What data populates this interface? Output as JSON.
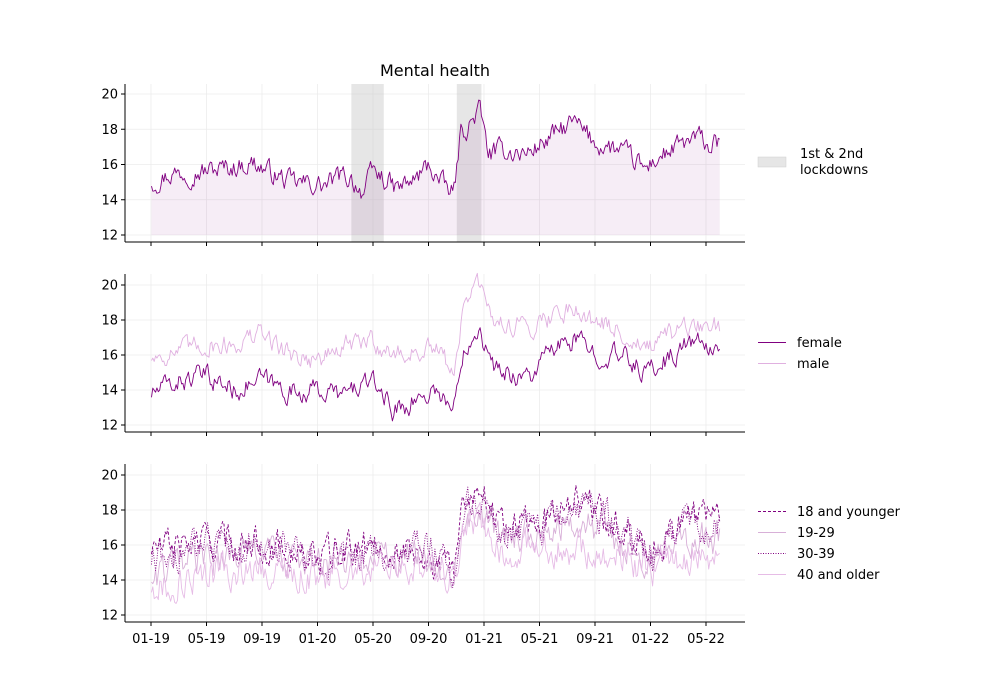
{
  "chart_data": {
    "type": "line",
    "title": "Mental health",
    "x_ticks": [
      "01-19",
      "05-19",
      "09-19",
      "01-20",
      "05-20",
      "09-20",
      "01-21",
      "05-21",
      "09-21",
      "01-22",
      "05-22"
    ],
    "x_range": [
      "2019-01-01",
      "2022-05-01"
    ],
    "colors": {
      "primary": "#800080",
      "light": "#e0b0e0",
      "shade": "#c8c8c8"
    },
    "panels": [
      {
        "ylim": [
          12,
          20
        ],
        "yticks": [
          12,
          14,
          16,
          18,
          20
        ],
        "grid": true,
        "legend_placement": "right",
        "lockdowns_label": "1st & 2nd\nlockdowns",
        "lockdown_periods": [
          {
            "start": "2020-03-15",
            "end": "2020-05-25"
          },
          {
            "start": "2020-11-01",
            "end": "2020-12-25"
          }
        ],
        "series": [
          {
            "style": "solid",
            "color": "#800080",
            "fill_to": 12,
            "anchors": [
              [
                "2019-01-02",
                15.0
              ],
              [
                "2019-02-15",
                15.5
              ],
              [
                "2019-04-15",
                15.6
              ],
              [
                "2019-06-15",
                15.8
              ],
              [
                "2019-08-15",
                16.1
              ],
              [
                "2019-09-15",
                15.6
              ],
              [
                "2019-11-01",
                15.0
              ],
              [
                "2019-12-15",
                14.9
              ],
              [
                "2020-01-15",
                14.8
              ],
              [
                "2020-02-20",
                15.3
              ],
              [
                "2020-03-15",
                15.2
              ],
              [
                "2020-04-10",
                14.4
              ],
              [
                "2020-05-01",
                15.6
              ],
              [
                "2020-05-25",
                15.2
              ],
              [
                "2020-06-20",
                14.6
              ],
              [
                "2020-08-01",
                15.1
              ],
              [
                "2020-09-01",
                16.0
              ],
              [
                "2020-09-25",
                15.0
              ],
              [
                "2020-10-25",
                14.3
              ],
              [
                "2020-11-10",
                17.8
              ],
              [
                "2020-12-01",
                18.3
              ],
              [
                "2020-12-20",
                19.2
              ],
              [
                "2021-01-10",
                16.6
              ],
              [
                "2021-02-15",
                16.8
              ],
              [
                "2021-04-01",
                16.6
              ],
              [
                "2021-05-01",
                17.1
              ],
              [
                "2021-06-15",
                17.9
              ],
              [
                "2021-07-15",
                18.4
              ],
              [
                "2021-09-01",
                17.2
              ],
              [
                "2021-11-01",
                16.7
              ],
              [
                "2021-12-20",
                15.7
              ],
              [
                "2022-01-10",
                16.3
              ],
              [
                "2022-03-01",
                17.0
              ],
              [
                "2022-04-15",
                17.5
              ],
              [
                "2022-05-10",
                17.0
              ],
              [
                "2022-06-01",
                17.2
              ]
            ]
          }
        ]
      },
      {
        "ylim": [
          12,
          20
        ],
        "yticks": [
          12,
          14,
          16,
          18,
          20
        ],
        "grid": true,
        "legend_placement": "right",
        "series": [
          {
            "name": "female",
            "style": "solid",
            "color": "#800080",
            "anchors": [
              [
                "2019-01-02",
                13.8
              ],
              [
                "2019-03-01",
                14.5
              ],
              [
                "2019-05-01",
                14.8
              ],
              [
                "2019-07-01",
                14.0
              ],
              [
                "2019-09-01",
                14.6
              ],
              [
                "2019-11-01",
                13.9
              ],
              [
                "2020-01-01",
                14.0
              ],
              [
                "2020-03-01",
                13.7
              ],
              [
                "2020-04-15",
                14.5
              ],
              [
                "2020-05-20",
                14.0
              ],
              [
                "2020-06-15",
                12.8
              ],
              [
                "2020-08-15",
                13.6
              ],
              [
                "2020-09-15",
                14.1
              ],
              [
                "2020-10-25",
                12.8
              ],
              [
                "2020-11-15",
                16.4
              ],
              [
                "2020-12-20",
                17.8
              ],
              [
                "2021-01-15",
                15.3
              ],
              [
                "2021-03-01",
                14.9
              ],
              [
                "2021-04-15",
                14.8
              ],
              [
                "2021-05-15",
                16.0
              ],
              [
                "2021-07-15",
                16.9
              ],
              [
                "2021-09-01",
                16.1
              ],
              [
                "2021-11-01",
                15.9
              ],
              [
                "2021-12-20",
                15.0
              ],
              [
                "2022-02-01",
                15.7
              ],
              [
                "2022-04-01",
                16.8
              ],
              [
                "2022-05-15",
                16.2
              ],
              [
                "2022-06-01",
                16.8
              ]
            ]
          },
          {
            "name": "male",
            "style": "solid",
            "color": "#e0b0e0",
            "anchors": [
              [
                "2019-01-02",
                15.9
              ],
              [
                "2019-03-01",
                16.2
              ],
              [
                "2019-05-01",
                16.6
              ],
              [
                "2019-07-01",
                16.6
              ],
              [
                "2019-09-01",
                17.2
              ],
              [
                "2019-11-01",
                16.1
              ],
              [
                "2020-01-01",
                15.7
              ],
              [
                "2020-03-01",
                16.5
              ],
              [
                "2020-05-01",
                16.8
              ],
              [
                "2020-06-15",
                16.0
              ],
              [
                "2020-09-15",
                16.3
              ],
              [
                "2020-10-25",
                15.1
              ],
              [
                "2020-11-20",
                19.2
              ],
              [
                "2020-12-20",
                20.0
              ],
              [
                "2021-01-15",
                18.0
              ],
              [
                "2021-04-01",
                17.6
              ],
              [
                "2021-07-15",
                18.8
              ],
              [
                "2021-09-01",
                17.9
              ],
              [
                "2021-11-15",
                17.1
              ],
              [
                "2021-12-20",
                16.2
              ],
              [
                "2022-03-01",
                17.3
              ],
              [
                "2022-05-15",
                17.8
              ],
              [
                "2022-06-01",
                17.5
              ]
            ]
          }
        ]
      },
      {
        "ylim": [
          12,
          20
        ],
        "yticks": [
          12,
          14,
          16,
          18,
          20
        ],
        "grid": true,
        "legend_placement": "right",
        "series": [
          {
            "name": "18 and younger",
            "style": "dashed",
            "color": "#800080",
            "anchors": [
              [
                "2019-01-02",
                15.8
              ],
              [
                "2019-05-01",
                16.2
              ],
              [
                "2019-09-01",
                16.1
              ],
              [
                "2020-01-01",
                15.2
              ],
              [
                "2020-05-01",
                16.0
              ],
              [
                "2020-09-01",
                15.4
              ],
              [
                "2020-10-25",
                14.2
              ],
              [
                "2020-11-15",
                18.6
              ],
              [
                "2020-12-20",
                19.5
              ],
              [
                "2021-02-01",
                17.4
              ],
              [
                "2021-05-01",
                17.1
              ],
              [
                "2021-07-15",
                19.0
              ],
              [
                "2021-10-01",
                17.3
              ],
              [
                "2022-01-01",
                15.9
              ],
              [
                "2022-04-01",
                17.8
              ],
              [
                "2022-06-01",
                18.2
              ]
            ]
          },
          {
            "name": "19-29",
            "style": "solid",
            "color": "#d8b0d8",
            "anchors": [
              [
                "2019-01-02",
                14.2
              ],
              [
                "2019-05-01",
                15.2
              ],
              [
                "2019-09-01",
                15.6
              ],
              [
                "2020-01-01",
                14.8
              ],
              [
                "2020-05-01",
                15.1
              ],
              [
                "2020-09-01",
                15.3
              ],
              [
                "2020-10-25",
                14.3
              ],
              [
                "2020-11-15",
                17.3
              ],
              [
                "2020-12-20",
                17.9
              ],
              [
                "2021-02-01",
                16.4
              ],
              [
                "2021-05-01",
                16.8
              ],
              [
                "2021-07-15",
                17.1
              ],
              [
                "2021-10-01",
                16.6
              ],
              [
                "2022-01-01",
                15.2
              ],
              [
                "2022-04-01",
                16.3
              ],
              [
                "2022-06-01",
                16.4
              ]
            ]
          },
          {
            "name": "30-39",
            "style": "dotted",
            "color": "#800080",
            "anchors": [
              [
                "2019-01-02",
                15.2
              ],
              [
                "2019-05-01",
                15.9
              ],
              [
                "2019-09-01",
                16.3
              ],
              [
                "2020-01-01",
                15.0
              ],
              [
                "2020-05-01",
                15.6
              ],
              [
                "2020-09-01",
                15.8
              ],
              [
                "2020-10-25",
                14.5
              ],
              [
                "2020-11-15",
                18.3
              ],
              [
                "2020-12-20",
                18.9
              ],
              [
                "2021-02-01",
                16.9
              ],
              [
                "2021-05-01",
                16.6
              ],
              [
                "2021-07-15",
                18.3
              ],
              [
                "2021-10-01",
                17.5
              ],
              [
                "2022-01-01",
                15.4
              ],
              [
                "2022-04-01",
                17.3
              ],
              [
                "2022-06-01",
                17.1
              ]
            ]
          },
          {
            "name": "40 and older",
            "style": "solid",
            "color": "#e6bce6",
            "anchors": [
              [
                "2019-01-02",
                13.6
              ],
              [
                "2019-05-01",
                14.2
              ],
              [
                "2019-09-01",
                14.8
              ],
              [
                "2020-01-01",
                14.1
              ],
              [
                "2020-05-01",
                14.5
              ],
              [
                "2020-09-01",
                14.8
              ],
              [
                "2020-10-25",
                14.0
              ],
              [
                "2020-11-15",
                16.6
              ],
              [
                "2020-12-20",
                17.1
              ],
              [
                "2021-02-01",
                15.7
              ],
              [
                "2021-05-01",
                15.9
              ],
              [
                "2021-07-15",
                15.6
              ],
              [
                "2021-10-01",
                15.5
              ],
              [
                "2022-01-01",
                14.5
              ],
              [
                "2022-04-01",
                15.4
              ],
              [
                "2022-06-01",
                15.3
              ]
            ]
          }
        ]
      }
    ]
  }
}
